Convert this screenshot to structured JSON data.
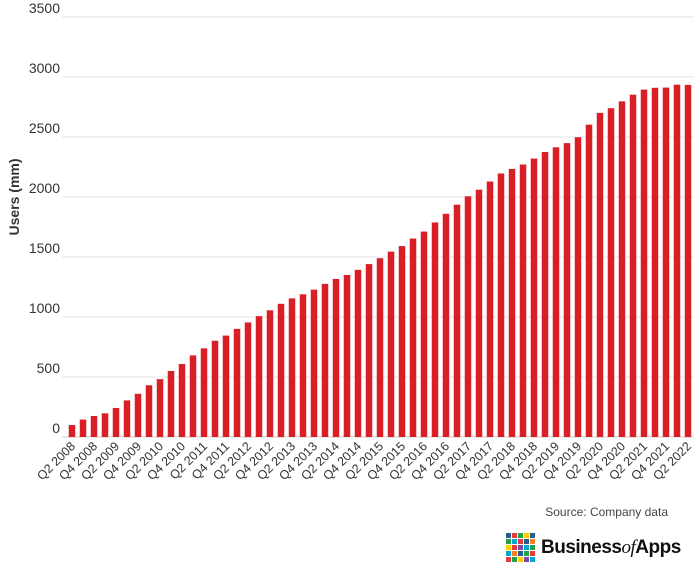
{
  "chart_data": {
    "type": "bar",
    "title": "",
    "ylabel": "Users (mm)",
    "xlabel": "",
    "ylim": [
      0,
      3500
    ],
    "yticks": [
      0,
      500,
      1000,
      1500,
      2000,
      2500,
      3000,
      3500
    ],
    "grid": true,
    "bar_color": "#d91f26",
    "categories": [
      "Q2 2008",
      "Q3 2008",
      "Q4 2008",
      "Q1 2009",
      "Q2 2009",
      "Q3 2009",
      "Q4 2009",
      "Q1 2010",
      "Q2 2010",
      "Q3 2010",
      "Q4 2010",
      "Q1 2011",
      "Q2 2011",
      "Q3 2011",
      "Q4 2011",
      "Q1 2012",
      "Q2 2012",
      "Q3 2012",
      "Q4 2012",
      "Q1 2013",
      "Q2 2013",
      "Q3 2013",
      "Q4 2013",
      "Q1 2014",
      "Q2 2014",
      "Q3 2014",
      "Q4 2014",
      "Q1 2015",
      "Q2 2015",
      "Q3 2015",
      "Q4 2015",
      "Q1 2016",
      "Q2 2016",
      "Q3 2016",
      "Q4 2016",
      "Q1 2017",
      "Q2 2017",
      "Q3 2017",
      "Q4 2017",
      "Q1 2018",
      "Q2 2018",
      "Q3 2018",
      "Q4 2018",
      "Q1 2019",
      "Q2 2019",
      "Q3 2019",
      "Q4 2019",
      "Q1 2020",
      "Q2 2020",
      "Q3 2020",
      "Q4 2020",
      "Q1 2021",
      "Q2 2021",
      "Q3 2021",
      "Q4 2021",
      "Q1 2022",
      "Q2 2022"
    ],
    "shown_category_labels": [
      "Q2 2008",
      "Q4 2008",
      "Q2 2009",
      "Q4 2009",
      "Q2 2010",
      "Q4 2010",
      "Q2 2011",
      "Q4 2011",
      "Q2 2012",
      "Q4 2012",
      "Q2 2013",
      "Q4 2013",
      "Q2 2014",
      "Q4 2014",
      "Q2 2015",
      "Q4 2015",
      "Q2 2016",
      "Q4 2016",
      "Q2 2017",
      "Q4 2017",
      "Q2 2018",
      "Q4 2018",
      "Q2 2019",
      "Q4 2019",
      "Q2 2020",
      "Q4 2020",
      "Q2 2021",
      "Q4 2021",
      "Q2 2022"
    ],
    "values": [
      100,
      145,
      175,
      197,
      242,
      305,
      360,
      431,
      482,
      550,
      608,
      680,
      739,
      802,
      845,
      901,
      955,
      1007,
      1056,
      1110,
      1155,
      1189,
      1228,
      1276,
      1317,
      1350,
      1393,
      1441,
      1490,
      1545,
      1591,
      1654,
      1712,
      1788,
      1860,
      1936,
      2006,
      2061,
      2129,
      2196,
      2234,
      2271,
      2320,
      2375,
      2414,
      2449,
      2498,
      2603,
      2701,
      2740,
      2797,
      2853,
      2895,
      2910,
      2912,
      2936,
      2934
    ]
  },
  "footer": {
    "source": "Source: Company data",
    "brand_main": "Business",
    "brand_of": "of",
    "brand_end": "Apps"
  }
}
